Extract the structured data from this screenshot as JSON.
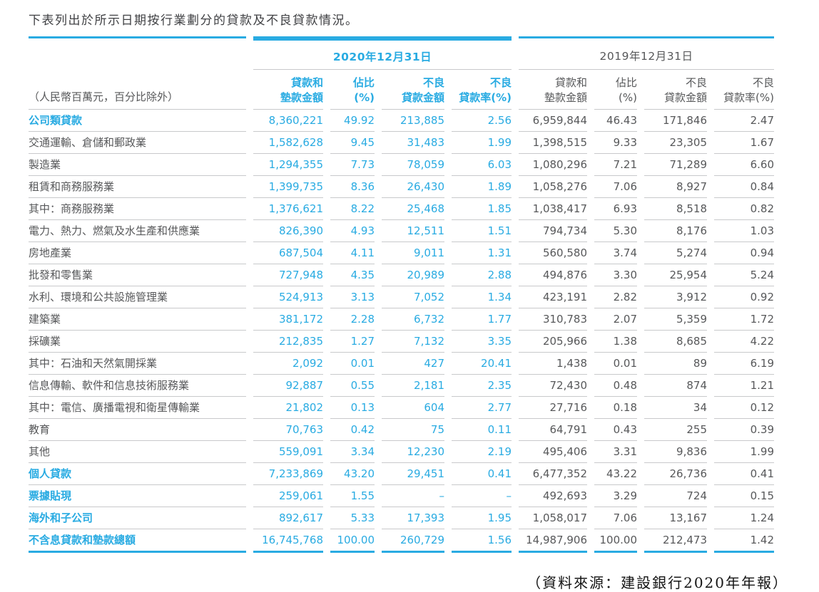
{
  "title": "下表列出於所示日期按行業劃分的貸款及不良貸款情況。",
  "source_note": "（資料來源：建設銀行2020年年報）",
  "colors": {
    "accent": "#29abe2",
    "text_gray": "#57585a",
    "rule_gray": "#c8c9cb"
  },
  "table": {
    "unit_note": "（人民幣百萬元，百分比除外）",
    "groups": [
      {
        "label": "2020年12月31日"
      },
      {
        "label": "2019年12月31日"
      }
    ],
    "columns": [
      {
        "line1": "貸款和",
        "line2": "墊款金額"
      },
      {
        "line1": "佔比",
        "line2": "(%)"
      },
      {
        "line1": "不良",
        "line2": "貸款金額"
      },
      {
        "line1": "不良",
        "line2": "貸款率(%)"
      }
    ],
    "rows": [
      {
        "label": "公司類貸款",
        "emphasis": true,
        "y2020": [
          "8,360,221",
          "49.92",
          "213,885",
          "2.56"
        ],
        "y2019": [
          "6,959,844",
          "46.43",
          "171,846",
          "2.47"
        ]
      },
      {
        "label": "交通運輸、倉儲和郵政業",
        "emphasis": false,
        "y2020": [
          "1,582,628",
          "9.45",
          "31,483",
          "1.99"
        ],
        "y2019": [
          "1,398,515",
          "9.33",
          "23,305",
          "1.67"
        ]
      },
      {
        "label": "製造業",
        "emphasis": false,
        "y2020": [
          "1,294,355",
          "7.73",
          "78,059",
          "6.03"
        ],
        "y2019": [
          "1,080,296",
          "7.21",
          "71,289",
          "6.60"
        ]
      },
      {
        "label": "租賃和商務服務業",
        "emphasis": false,
        "y2020": [
          "1,399,735",
          "8.36",
          "26,430",
          "1.89"
        ],
        "y2019": [
          "1,058,276",
          "7.06",
          "8,927",
          "0.84"
        ]
      },
      {
        "label": "其中：商務服務業",
        "emphasis": false,
        "y2020": [
          "1,376,621",
          "8.22",
          "25,468",
          "1.85"
        ],
        "y2019": [
          "1,038,417",
          "6.93",
          "8,518",
          "0.82"
        ]
      },
      {
        "label": "電力、熱力、燃氣及水生產和供應業",
        "emphasis": false,
        "y2020": [
          "826,390",
          "4.93",
          "12,511",
          "1.51"
        ],
        "y2019": [
          "794,734",
          "5.30",
          "8,176",
          "1.03"
        ]
      },
      {
        "label": "房地產業",
        "emphasis": false,
        "y2020": [
          "687,504",
          "4.11",
          "9,011",
          "1.31"
        ],
        "y2019": [
          "560,580",
          "3.74",
          "5,274",
          "0.94"
        ]
      },
      {
        "label": "批發和零售業",
        "emphasis": false,
        "y2020": [
          "727,948",
          "4.35",
          "20,989",
          "2.88"
        ],
        "y2019": [
          "494,876",
          "3.30",
          "25,954",
          "5.24"
        ]
      },
      {
        "label": "水利、環境和公共設施管理業",
        "emphasis": false,
        "y2020": [
          "524,913",
          "3.13",
          "7,052",
          "1.34"
        ],
        "y2019": [
          "423,191",
          "2.82",
          "3,912",
          "0.92"
        ]
      },
      {
        "label": "建築業",
        "emphasis": false,
        "y2020": [
          "381,172",
          "2.28",
          "6,732",
          "1.77"
        ],
        "y2019": [
          "310,783",
          "2.07",
          "5,359",
          "1.72"
        ]
      },
      {
        "label": "採礦業",
        "emphasis": false,
        "y2020": [
          "212,835",
          "1.27",
          "7,132",
          "3.35"
        ],
        "y2019": [
          "205,966",
          "1.38",
          "8,685",
          "4.22"
        ]
      },
      {
        "label": "其中：石油和天然氣開採業",
        "emphasis": false,
        "y2020": [
          "2,092",
          "0.01",
          "427",
          "20.41"
        ],
        "y2019": [
          "1,438",
          "0.01",
          "89",
          "6.19"
        ]
      },
      {
        "label": "信息傳輸、軟件和信息技術服務業",
        "emphasis": false,
        "y2020": [
          "92,887",
          "0.55",
          "2,181",
          "2.35"
        ],
        "y2019": [
          "72,430",
          "0.48",
          "874",
          "1.21"
        ]
      },
      {
        "label": "其中：電信、廣播電視和衛星傳輸業",
        "emphasis": false,
        "y2020": [
          "21,802",
          "0.13",
          "604",
          "2.77"
        ],
        "y2019": [
          "27,716",
          "0.18",
          "34",
          "0.12"
        ]
      },
      {
        "label": "教育",
        "emphasis": false,
        "y2020": [
          "70,763",
          "0.42",
          "75",
          "0.11"
        ],
        "y2019": [
          "64,791",
          "0.43",
          "255",
          "0.39"
        ]
      },
      {
        "label": "其他",
        "emphasis": false,
        "y2020": [
          "559,091",
          "3.34",
          "12,230",
          "2.19"
        ],
        "y2019": [
          "495,406",
          "3.31",
          "9,836",
          "1.99"
        ]
      },
      {
        "label": "個人貸款",
        "emphasis": true,
        "y2020": [
          "7,233,869",
          "43.20",
          "29,451",
          "0.41"
        ],
        "y2019": [
          "6,477,352",
          "43.22",
          "26,736",
          "0.41"
        ]
      },
      {
        "label": "票據貼現",
        "emphasis": true,
        "y2020": [
          "259,061",
          "1.55",
          "–",
          "–"
        ],
        "y2019": [
          "492,693",
          "3.29",
          "724",
          "0.15"
        ]
      },
      {
        "label": "海外和子公司",
        "emphasis": true,
        "y2020": [
          "892,617",
          "5.33",
          "17,393",
          "1.95"
        ],
        "y2019": [
          "1,058,017",
          "7.06",
          "13,167",
          "1.24"
        ]
      },
      {
        "label": "不含息貸款和墊款總額",
        "emphasis": true,
        "y2020": [
          "16,745,768",
          "100.00",
          "260,729",
          "1.56"
        ],
        "y2019": [
          "14,987,906",
          "100.00",
          "212,473",
          "1.42"
        ]
      }
    ]
  }
}
